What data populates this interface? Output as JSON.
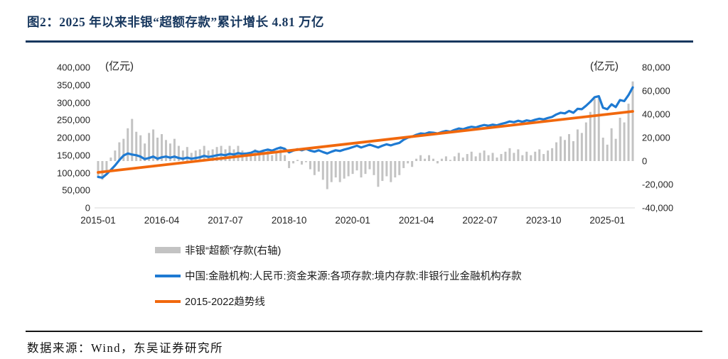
{
  "title": "图2：2025 年以来非银“超额存款”累计增长 4.81 万亿",
  "footer": {
    "source_text": "数据来源：Wind，东吴证券研究所"
  },
  "colors": {
    "title": "#17375E",
    "bar": "#C3C3C3",
    "line_blue": "#1E7AD2",
    "line_orange": "#F1680D",
    "axis_text": "#262626",
    "axis_line": "#D9D9D9"
  },
  "chart_data": {
    "type": "bar+line",
    "unit_label_left": "(亿元)",
    "unit_label_right": "(亿元)",
    "x_start": "2015-01",
    "x_end": "2025-07",
    "x_tick_labels": [
      "2015-01",
      "2016-04",
      "2017-07",
      "2018-10",
      "2020-01",
      "2021-04",
      "2022-07",
      "2023-10",
      "2025-01"
    ],
    "x_tick_indices": [
      0,
      15,
      30,
      45,
      60,
      75,
      90,
      105,
      120
    ],
    "left_axis": {
      "min": 0,
      "max": 400000,
      "tick_step": 50000,
      "ticks": [
        "400,000",
        "350,000",
        "300,000",
        "250,000",
        "200,000",
        "150,000",
        "100,000",
        "50,000",
        "0"
      ]
    },
    "right_axis": {
      "min": -40000,
      "max": 80000,
      "tick_step": 20000,
      "ticks": [
        "80,000",
        "60,000",
        "40,000",
        "20,000",
        "0",
        "-20,000",
        "-40,000"
      ]
    },
    "grid": false,
    "legend_position": "bottom-left",
    "series": [
      {
        "name": "非银“超额”存款(右轴)",
        "type": "bar",
        "axis": "right",
        "color": "#C3C3C3",
        "values": [
          -13000,
          -16000,
          -8000,
          3000,
          9000,
          16000,
          19000,
          28000,
          36000,
          25000,
          22000,
          15000,
          24000,
          27000,
          20000,
          23000,
          18000,
          15000,
          19000,
          13000,
          9000,
          12000,
          7000,
          9000,
          10000,
          13000,
          9000,
          10000,
          12000,
          13000,
          10000,
          13000,
          10000,
          13000,
          9000,
          7000,
          6000,
          10000,
          5000,
          8000,
          9000,
          5000,
          8000,
          11000,
          5000,
          -6000,
          -2000,
          1000,
          -3000,
          -1000,
          -7000,
          -12000,
          -9000,
          -16000,
          -24000,
          -18000,
          -14000,
          -18000,
          -15000,
          -13000,
          -11000,
          -8000,
          -14000,
          -11000,
          -7000,
          -12000,
          -22000,
          -17000,
          -13000,
          -18000,
          -14000,
          -12000,
          -6000,
          -2000,
          -5000,
          2000,
          5000,
          2000,
          5000,
          2000,
          -2000,
          2000,
          4000,
          1000,
          4000,
          7000,
          3000,
          6000,
          8000,
          4000,
          7000,
          9000,
          5000,
          7000,
          3000,
          6000,
          8000,
          11000,
          7000,
          10000,
          5000,
          8000,
          5000,
          8000,
          10000,
          6000,
          9000,
          11000,
          16000,
          21000,
          18000,
          23000,
          17000,
          27000,
          24000,
          33000,
          42000,
          53000,
          54000,
          20000,
          14000,
          28000,
          19000,
          37000,
          33000,
          49000,
          68000
        ]
      },
      {
        "name": "中国:金融机构:人民币:资金来源:各项存款:境内存款:非银行业金融机构存款",
        "type": "line",
        "axis": "left",
        "color": "#1E7AD2",
        "values": [
          88000,
          86000,
          96000,
          108000,
          121000,
          136000,
          149000,
          155000,
          152000,
          150000,
          146000,
          139000,
          142000,
          146000,
          140000,
          144000,
          146000,
          143000,
          146000,
          142000,
          140000,
          143000,
          140000,
          142000,
          144000,
          148000,
          145000,
          147000,
          150000,
          152000,
          150000,
          154000,
          152000,
          156000,
          154000,
          155000,
          157000,
          162000,
          159000,
          163000,
          166000,
          163000,
          168000,
          172000,
          168000,
          158000,
          163000,
          167000,
          164000,
          168000,
          163000,
          160000,
          164000,
          159000,
          155000,
          160000,
          164000,
          162000,
          166000,
          169000,
          173000,
          177000,
          172000,
          176000,
          180000,
          176000,
          172000,
          177000,
          181000,
          178000,
          182000,
          185000,
          194000,
          200000,
          203000,
          208000,
          212000,
          211000,
          215000,
          214000,
          212000,
          216000,
          219000,
          217000,
          222000,
          226000,
          224000,
          228000,
          231000,
          229000,
          233000,
          236000,
          234000,
          237000,
          235000,
          239000,
          242000,
          246000,
          244000,
          248000,
          245000,
          249000,
          247000,
          251000,
          254000,
          252000,
          256000,
          259000,
          266000,
          271000,
          269000,
          276000,
          271000,
          282000,
          281000,
          291000,
          302000,
          315000,
          318000,
          285000,
          281000,
          295000,
          287000,
          307000,
          304000,
          321000,
          343000
        ]
      },
      {
        "name": "2015-2022趋势线",
        "type": "trendline",
        "axis": "left",
        "color": "#F1680D",
        "start": 101000,
        "end": 274800
      }
    ]
  }
}
